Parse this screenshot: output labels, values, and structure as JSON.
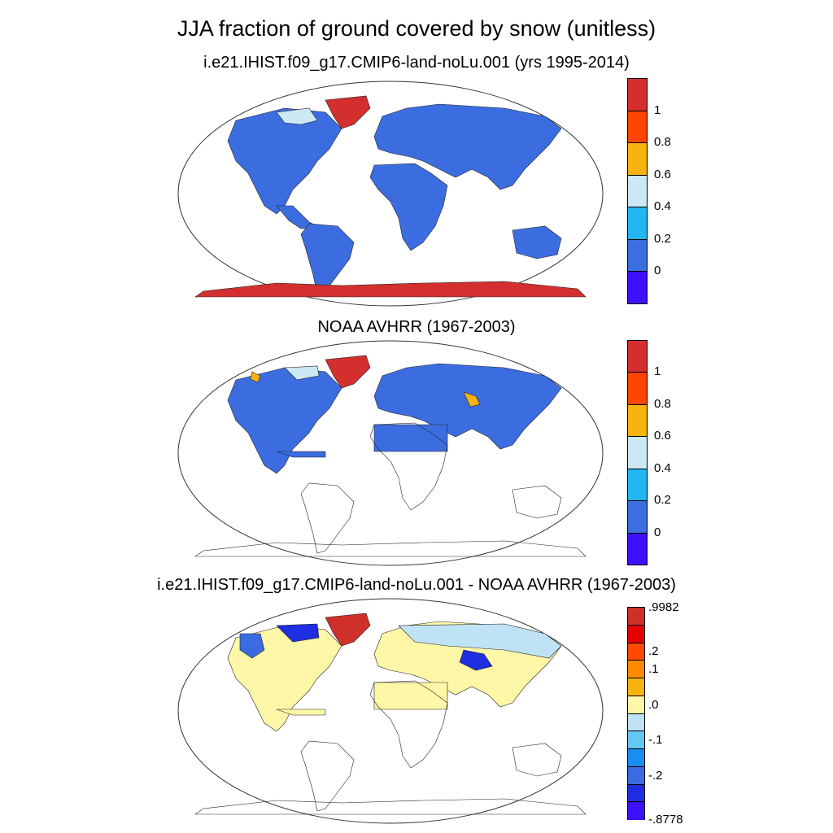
{
  "title": "JJA fraction of ground covered by snow (unitless)",
  "colors": {
    "blue_land": "#3c6de0",
    "red_snow": "#d22a2a",
    "diff_yellow": "#fff7a8",
    "diff_lightblue": "#bfe3f5"
  },
  "panels": [
    {
      "id": "model",
      "title": "i.e21.IHIST.f09_g17.CMIP6-land-noLu.001 (yrs 1995-2014)",
      "colorbar": {
        "colors": [
          "#d32f2f",
          "#ff4500",
          "#f9b30e",
          "#cce8f4",
          "#22b6f2",
          "#3b6fe0",
          "#3f10ff"
        ],
        "labels": [
          "1",
          "0.8",
          "0.6",
          "0.4",
          "0.2",
          "0"
        ]
      }
    },
    {
      "id": "obs",
      "title": "NOAA AVHRR (1967-2003)",
      "colorbar": {
        "colors": [
          "#d32f2f",
          "#ff4500",
          "#f9b30e",
          "#cce8f4",
          "#22b6f2",
          "#3b6fe0",
          "#3f10ff"
        ],
        "labels": [
          "1",
          "0.8",
          "0.6",
          "0.4",
          "0.2",
          "0"
        ]
      }
    },
    {
      "id": "diff",
      "title": "i.e21.IHIST.f09_g17.CMIP6-land-noLu.001 - NOAA AVHRR (1967-2003)",
      "colorbar": {
        "colors": [
          "#d0302a",
          "#e60000",
          "#ff4a00",
          "#ff8a00",
          "#f5b50d",
          "#fff7a8",
          "#bfe3f5",
          "#66c6f4",
          "#1a8ef0",
          "#3b6be0",
          "#1f2ee0",
          "#3f10ff"
        ],
        "labels": [
          ".9982",
          ".2",
          ".1",
          ".0",
          "-.1",
          "-.2",
          "-.8778"
        ]
      }
    }
  ]
}
